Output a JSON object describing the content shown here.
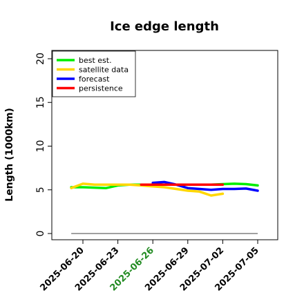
{
  "chart_data": {
    "type": "line",
    "title": "Ice edge length",
    "ylabel": "Length (1000km)",
    "xlabel": "",
    "ylim": [
      0,
      21
    ],
    "y_ticks": [
      0,
      5,
      10,
      15,
      20
    ],
    "x_tick_labels": [
      "2025-06-20",
      "2025-06-23",
      "2025-06-26",
      "2025-06-29",
      "2025-07-02",
      "2025-07-05"
    ],
    "highlighted_tick": "2025-06-26",
    "highlight_color": "#228B22",
    "legend_position": "top-left",
    "series": [
      {
        "name": "best est.",
        "color": "#00ee00",
        "x": [
          "2025-06-19",
          "2025-06-20",
          "2025-06-21",
          "2025-06-22",
          "2025-06-23",
          "2025-06-24",
          "2025-06-25",
          "2025-06-26",
          "2025-06-27",
          "2025-06-28",
          "2025-06-29",
          "2025-06-30",
          "2025-07-01",
          "2025-07-02",
          "2025-07-03",
          "2025-07-04",
          "2025-07-05"
        ],
        "values": [
          5.3,
          5.3,
          5.25,
          5.2,
          5.5,
          5.6,
          5.6,
          5.6,
          5.6,
          5.6,
          5.6,
          5.6,
          5.6,
          5.65,
          5.7,
          5.65,
          5.5
        ]
      },
      {
        "name": "satellite data",
        "color": "#ffd700",
        "x": [
          "2025-06-19",
          "2025-06-20",
          "2025-06-21",
          "2025-06-22",
          "2025-06-23",
          "2025-06-24",
          "2025-06-25",
          "2025-06-26",
          "2025-06-27",
          "2025-06-28",
          "2025-06-29",
          "2025-06-30",
          "2025-07-01",
          "2025-07-02"
        ],
        "values": [
          5.2,
          5.7,
          5.6,
          5.6,
          5.6,
          5.6,
          5.5,
          5.4,
          5.3,
          5.1,
          4.9,
          4.8,
          4.35,
          4.55
        ]
      },
      {
        "name": "forecast",
        "color": "#0000ff",
        "x": [
          "2025-06-26",
          "2025-06-27",
          "2025-06-28",
          "2025-06-29",
          "2025-06-30",
          "2025-07-01",
          "2025-07-02",
          "2025-07-03",
          "2025-07-04",
          "2025-07-05"
        ],
        "values": [
          5.8,
          5.9,
          5.6,
          5.2,
          5.1,
          5.0,
          5.1,
          5.1,
          5.15,
          4.9
        ]
      },
      {
        "name": "persistence",
        "color": "#ff0000",
        "x": [
          "2025-06-25",
          "2025-06-26",
          "2025-06-27",
          "2025-06-28",
          "2025-06-29",
          "2025-06-30",
          "2025-07-01",
          "2025-07-02"
        ],
        "values": [
          5.6,
          5.6,
          5.6,
          5.6,
          5.6,
          5.6,
          5.6,
          5.6
        ]
      }
    ],
    "baseline": {
      "value": 0,
      "color": "#808080",
      "x_start": "2025-06-19",
      "x_end": "2025-07-05"
    }
  }
}
